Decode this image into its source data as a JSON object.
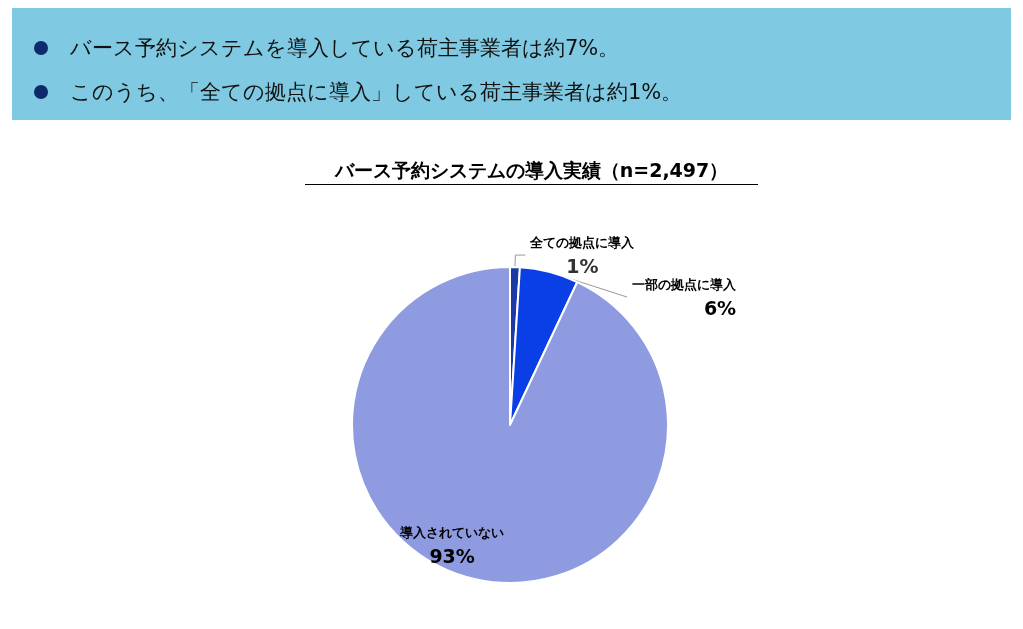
{
  "chart_data": {
    "type": "pie",
    "title": "バース予約システムの導入実績（n=2,497）",
    "annotations": [
      "バース予約システムを導入している荷主事業者は約7%。",
      "このうち、「全ての拠点に導入」している荷主事業者は約1%。"
    ],
    "categories": [
      "全ての拠点に導入",
      "一部の拠点に導入",
      "導入されていない"
    ],
    "values": [
      1,
      6,
      93
    ],
    "value_labels": [
      "1%",
      "6%",
      "93%"
    ],
    "colors": [
      "#1c3aa6",
      "#0b3fe6",
      "#8f9be0"
    ],
    "legend": false
  }
}
